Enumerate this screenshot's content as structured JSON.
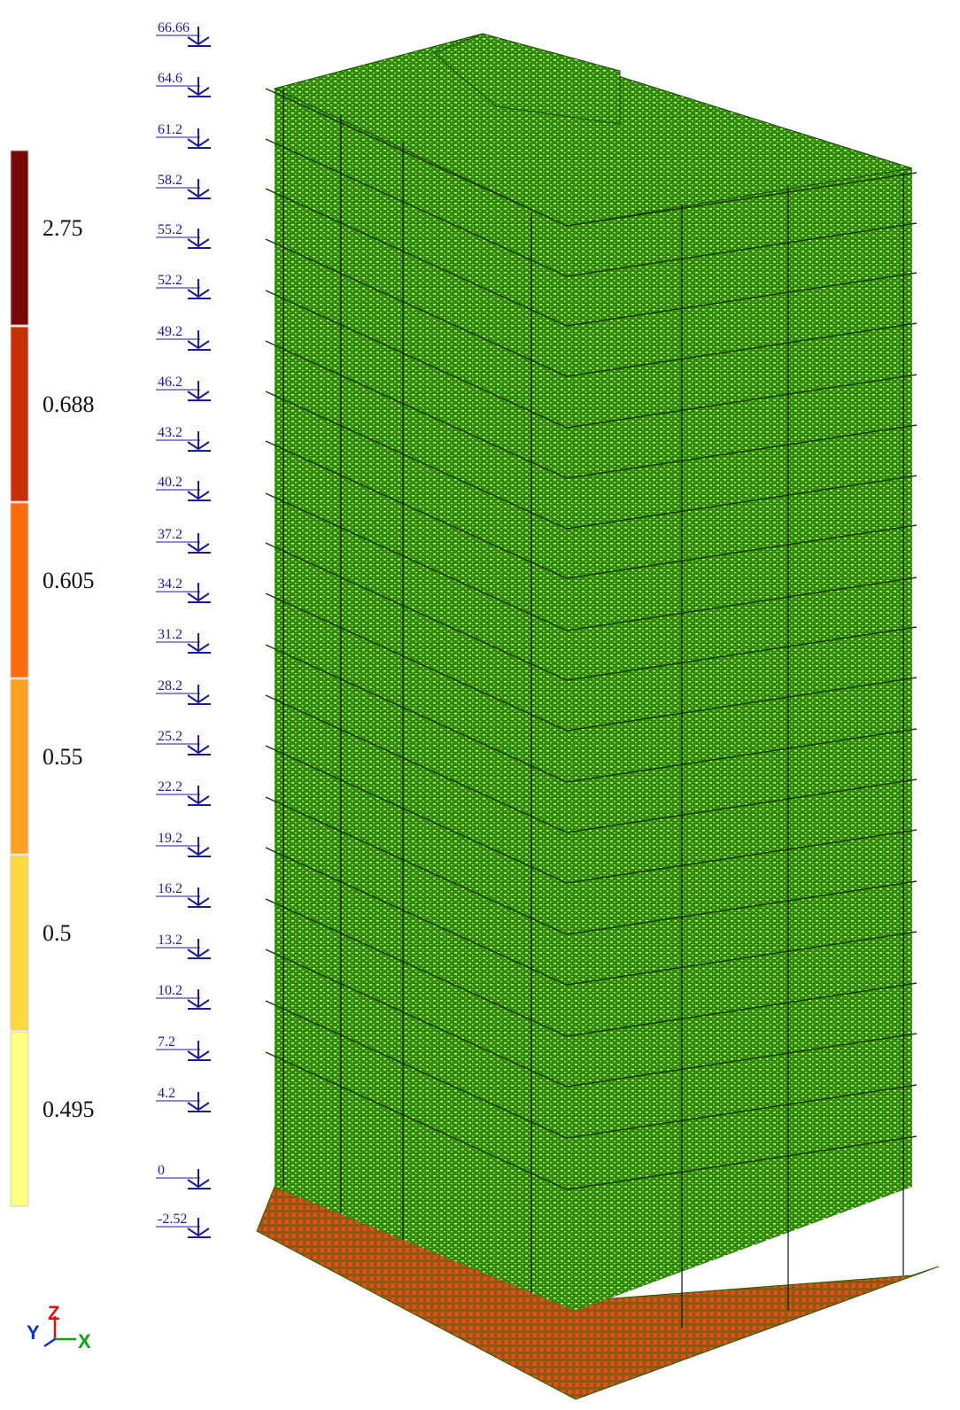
{
  "legend": {
    "items": [
      {
        "label": "2.75",
        "color": "#7a0a0a"
      },
      {
        "label": "0.688",
        "color": "#c8300a"
      },
      {
        "label": "0.605",
        "color": "#ff6a0a"
      },
      {
        "label": "0.55",
        "color": "#ffa020"
      },
      {
        "label": "0.5",
        "color": "#ffd840"
      },
      {
        "label": "0.495",
        "color": "#ffff80"
      }
    ]
  },
  "levels": [
    "66.66",
    "64.6",
    "61.2",
    "58.2",
    "55.2",
    "52.2",
    "49.2",
    "46.2",
    "43.2",
    "40.2",
    "37.2",
    "34.2",
    "31.2",
    "28.2",
    "25.2",
    "22.2",
    "19.2",
    "16.2",
    "13.2",
    "10.2",
    "7.2",
    "4.2",
    "0",
    "-2.52"
  ],
  "axes": {
    "z": "Z",
    "y": "Y",
    "x": "X"
  }
}
